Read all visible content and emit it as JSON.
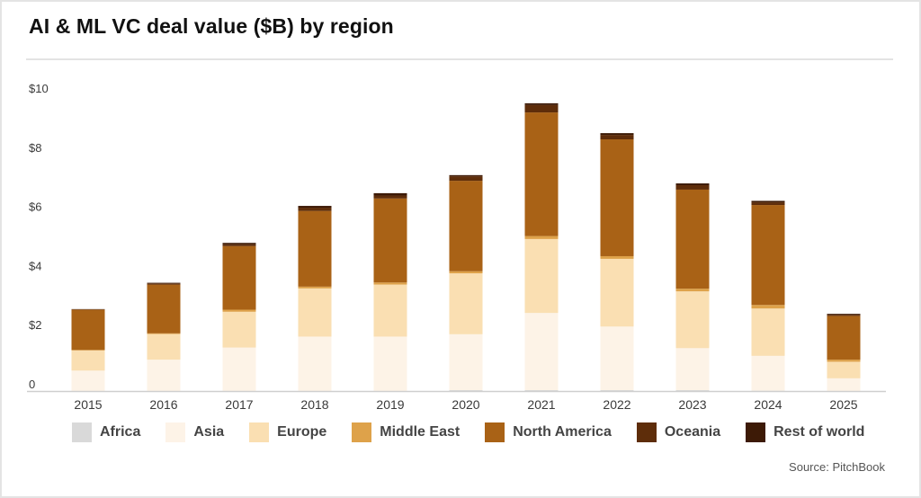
{
  "page": {
    "title": "AI & ML VC deal value ($B) by region",
    "source": "Source: PitchBook"
  },
  "chart_data": {
    "type": "bar",
    "stacked": true,
    "title": "AI & ML VC deal value ($B) by region",
    "xlabel": "",
    "ylabel": "",
    "ylim": [
      0,
      10
    ],
    "yticks": [
      0,
      2,
      4,
      6,
      8,
      10
    ],
    "ytick_labels": [
      "0",
      "$2",
      "$4",
      "$6",
      "$8",
      "$10"
    ],
    "grid": false,
    "legend_position": "bottom",
    "categories": [
      "2015",
      "2016",
      "2017",
      "2018",
      "2019",
      "2020",
      "2021",
      "2022",
      "2023",
      "2024",
      "2025"
    ],
    "series": [
      {
        "name": "Africa",
        "color": "#d9d9d9",
        "values": [
          0.0,
          0.0,
          0.0,
          0.0,
          0.0,
          0.03,
          0.03,
          0.03,
          0.03,
          0.01,
          0.0
        ]
      },
      {
        "name": "Asia",
        "color": "#fdf3e7",
        "values": [
          0.69,
          1.06,
          1.47,
          1.84,
          1.84,
          1.89,
          2.61,
          2.15,
          1.42,
          1.18,
          0.43
        ]
      },
      {
        "name": "Europe",
        "color": "#fadfb2",
        "values": [
          0.68,
          0.87,
          1.21,
          1.63,
          1.76,
          2.06,
          2.5,
          2.29,
          1.92,
          1.6,
          0.56
        ]
      },
      {
        "name": "Middle East",
        "color": "#dea24a",
        "values": [
          0.02,
          0.02,
          0.07,
          0.06,
          0.07,
          0.07,
          0.1,
          0.09,
          0.09,
          0.12,
          0.07
        ]
      },
      {
        "name": "North America",
        "color": "#a96216",
        "values": [
          1.36,
          1.65,
          2.15,
          2.56,
          2.84,
          3.06,
          4.18,
          3.95,
          3.35,
          3.38,
          1.48
        ]
      },
      {
        "name": "Oceania",
        "color": "#5e2d0a",
        "values": [
          0.01,
          0.04,
          0.06,
          0.11,
          0.1,
          0.15,
          0.25,
          0.15,
          0.15,
          0.09,
          0.04
        ]
      },
      {
        "name": "Rest of world",
        "color": "#3d1a06",
        "values": [
          0.01,
          0.02,
          0.05,
          0.06,
          0.08,
          0.04,
          0.06,
          0.06,
          0.06,
          0.05,
          0.03
        ]
      }
    ]
  }
}
